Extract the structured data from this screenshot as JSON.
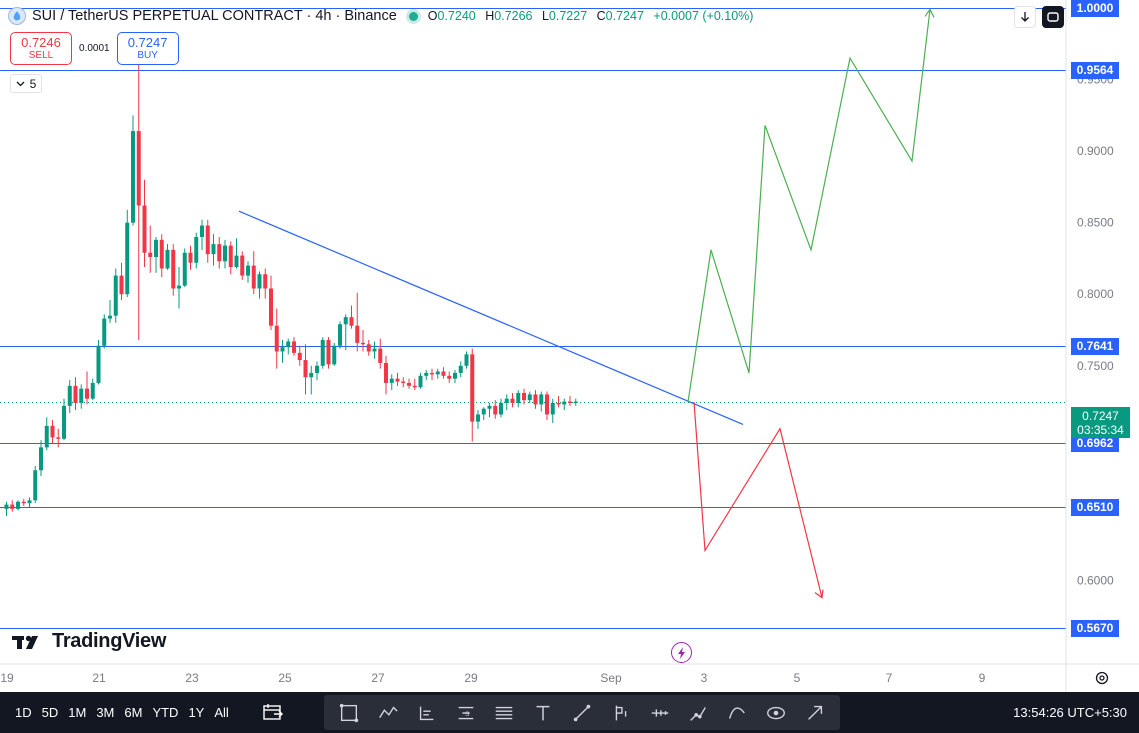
{
  "header": {
    "title": "SUI / TetherUS PERPETUAL CONTRACT · 4h · Binance",
    "ohlc": {
      "o_label": "O",
      "o": "0.7240",
      "h_label": "H",
      "h": "0.7266",
      "l_label": "L",
      "l": "0.7227",
      "c_label": "C",
      "c": "0.7247",
      "change": "+0.0007 (+0.10%)"
    }
  },
  "trade": {
    "sell_price": "0.7246",
    "sell_label": "SELL",
    "spread": "0.0001",
    "buy_price": "0.7247",
    "buy_label": "BUY"
  },
  "indicator_toggle": "5",
  "current_price": {
    "value": "0.7247",
    "countdown": "03:35:34"
  },
  "logo_text": "TradingView",
  "bottom_toolbar": {
    "periods": [
      "1D",
      "5D",
      "1M",
      "3M",
      "6M",
      "YTD",
      "1Y",
      "All"
    ],
    "tools": [
      "crosshair-icon",
      "pattern-icon",
      "long-position-icon",
      "short-position-icon",
      "fib-icon",
      "text-icon",
      "trendline-icon",
      "brush-icon",
      "ruler-icon",
      "path-icon",
      "curve-icon",
      "eye-icon",
      "arrow-icon"
    ],
    "clock": "13:54:26 UTC+5:30"
  },
  "colors": {
    "up": "#089981",
    "down": "#f23645",
    "level_line": "#2962ff",
    "trendline": "#2962ff",
    "bull_path": "#4caf50",
    "bear_path": "#f23645",
    "toolbar_bg": "#131722"
  },
  "chart_data": {
    "type": "candlestick",
    "timeframe": "4h",
    "y_axis": {
      "min": 0.55,
      "max": 1.0,
      "tick_labels": [
        "0.6000",
        "0.7500",
        "0.8000",
        "0.8500",
        "0.9000",
        "0.9500"
      ]
    },
    "x_axis": {
      "tick_labels": [
        "19",
        "21",
        "23",
        "25",
        "27",
        "29",
        "Sep",
        "3",
        "5",
        "7",
        "9"
      ]
    },
    "horizontal_levels": [
      1.0,
      0.9564,
      0.7641,
      0.6962,
      0.651,
      0.567
    ],
    "level_labels": [
      "1.0000",
      "0.9564",
      "0.7641",
      "0.6962",
      "0.6510",
      "0.5670"
    ],
    "candles": [
      {
        "o": 0.65,
        "h": 0.655,
        "l": 0.645,
        "c": 0.653
      },
      {
        "o": 0.653,
        "h": 0.656,
        "l": 0.648,
        "c": 0.65
      },
      {
        "o": 0.65,
        "h": 0.656,
        "l": 0.649,
        "c": 0.655
      },
      {
        "o": 0.655,
        "h": 0.657,
        "l": 0.652,
        "c": 0.654
      },
      {
        "o": 0.654,
        "h": 0.658,
        "l": 0.651,
        "c": 0.656
      },
      {
        "o": 0.656,
        "h": 0.68,
        "l": 0.654,
        "c": 0.677
      },
      {
        "o": 0.677,
        "h": 0.698,
        "l": 0.673,
        "c": 0.693
      },
      {
        "o": 0.693,
        "h": 0.714,
        "l": 0.691,
        "c": 0.708
      },
      {
        "o": 0.708,
        "h": 0.712,
        "l": 0.696,
        "c": 0.7
      },
      {
        "o": 0.7,
        "h": 0.706,
        "l": 0.693,
        "c": 0.699
      },
      {
        "o": 0.699,
        "h": 0.727,
        "l": 0.698,
        "c": 0.722
      },
      {
        "o": 0.722,
        "h": 0.74,
        "l": 0.717,
        "c": 0.736
      },
      {
        "o": 0.736,
        "h": 0.742,
        "l": 0.719,
        "c": 0.724
      },
      {
        "o": 0.724,
        "h": 0.737,
        "l": 0.72,
        "c": 0.734
      },
      {
        "o": 0.734,
        "h": 0.746,
        "l": 0.723,
        "c": 0.727
      },
      {
        "o": 0.727,
        "h": 0.741,
        "l": 0.726,
        "c": 0.738
      },
      {
        "o": 0.738,
        "h": 0.768,
        "l": 0.737,
        "c": 0.764
      },
      {
        "o": 0.764,
        "h": 0.786,
        "l": 0.762,
        "c": 0.783
      },
      {
        "o": 0.783,
        "h": 0.796,
        "l": 0.78,
        "c": 0.785
      },
      {
        "o": 0.785,
        "h": 0.818,
        "l": 0.78,
        "c": 0.813
      },
      {
        "o": 0.813,
        "h": 0.822,
        "l": 0.796,
        "c": 0.8
      },
      {
        "o": 0.8,
        "h": 0.859,
        "l": 0.798,
        "c": 0.85
      },
      {
        "o": 0.85,
        "h": 0.925,
        "l": 0.848,
        "c": 0.914
      },
      {
        "o": 0.914,
        "h": 0.967,
        "l": 0.768,
        "c": 0.862
      },
      {
        "o": 0.862,
        "h": 0.88,
        "l": 0.819,
        "c": 0.829
      },
      {
        "o": 0.829,
        "h": 0.848,
        "l": 0.815,
        "c": 0.826
      },
      {
        "o": 0.826,
        "h": 0.84,
        "l": 0.815,
        "c": 0.838
      },
      {
        "o": 0.838,
        "h": 0.842,
        "l": 0.812,
        "c": 0.818
      },
      {
        "o": 0.818,
        "h": 0.835,
        "l": 0.817,
        "c": 0.831
      },
      {
        "o": 0.831,
        "h": 0.835,
        "l": 0.799,
        "c": 0.804
      },
      {
        "o": 0.804,
        "h": 0.819,
        "l": 0.79,
        "c": 0.806
      },
      {
        "o": 0.806,
        "h": 0.832,
        "l": 0.805,
        "c": 0.829
      },
      {
        "o": 0.829,
        "h": 0.834,
        "l": 0.817,
        "c": 0.822
      },
      {
        "o": 0.822,
        "h": 0.843,
        "l": 0.818,
        "c": 0.84
      },
      {
        "o": 0.84,
        "h": 0.852,
        "l": 0.831,
        "c": 0.848
      },
      {
        "o": 0.848,
        "h": 0.852,
        "l": 0.822,
        "c": 0.828
      },
      {
        "o": 0.828,
        "h": 0.842,
        "l": 0.82,
        "c": 0.835
      },
      {
        "o": 0.835,
        "h": 0.84,
        "l": 0.818,
        "c": 0.823
      },
      {
        "o": 0.823,
        "h": 0.838,
        "l": 0.818,
        "c": 0.834
      },
      {
        "o": 0.834,
        "h": 0.837,
        "l": 0.814,
        "c": 0.819
      },
      {
        "o": 0.819,
        "h": 0.839,
        "l": 0.818,
        "c": 0.827
      },
      {
        "o": 0.827,
        "h": 0.83,
        "l": 0.81,
        "c": 0.813
      },
      {
        "o": 0.813,
        "h": 0.823,
        "l": 0.808,
        "c": 0.82
      },
      {
        "o": 0.82,
        "h": 0.83,
        "l": 0.8,
        "c": 0.804
      },
      {
        "o": 0.804,
        "h": 0.816,
        "l": 0.797,
        "c": 0.814
      },
      {
        "o": 0.814,
        "h": 0.818,
        "l": 0.797,
        "c": 0.804
      },
      {
        "o": 0.804,
        "h": 0.813,
        "l": 0.775,
        "c": 0.778
      },
      {
        "o": 0.778,
        "h": 0.79,
        "l": 0.748,
        "c": 0.76
      },
      {
        "o": 0.76,
        "h": 0.768,
        "l": 0.752,
        "c": 0.763
      },
      {
        "o": 0.763,
        "h": 0.769,
        "l": 0.758,
        "c": 0.767
      },
      {
        "o": 0.767,
        "h": 0.77,
        "l": 0.757,
        "c": 0.759
      },
      {
        "o": 0.759,
        "h": 0.764,
        "l": 0.75,
        "c": 0.754
      },
      {
        "o": 0.754,
        "h": 0.765,
        "l": 0.73,
        "c": 0.742
      },
      {
        "o": 0.742,
        "h": 0.75,
        "l": 0.73,
        "c": 0.745
      },
      {
        "o": 0.745,
        "h": 0.753,
        "l": 0.74,
        "c": 0.75
      },
      {
        "o": 0.75,
        "h": 0.77,
        "l": 0.748,
        "c": 0.768
      },
      {
        "o": 0.768,
        "h": 0.77,
        "l": 0.748,
        "c": 0.751
      },
      {
        "o": 0.751,
        "h": 0.766,
        "l": 0.75,
        "c": 0.764
      },
      {
        "o": 0.764,
        "h": 0.781,
        "l": 0.762,
        "c": 0.779
      },
      {
        "o": 0.779,
        "h": 0.786,
        "l": 0.761,
        "c": 0.784
      },
      {
        "o": 0.784,
        "h": 0.792,
        "l": 0.776,
        "c": 0.778
      },
      {
        "o": 0.778,
        "h": 0.801,
        "l": 0.76,
        "c": 0.766
      },
      {
        "o": 0.766,
        "h": 0.775,
        "l": 0.76,
        "c": 0.765
      },
      {
        "o": 0.765,
        "h": 0.768,
        "l": 0.757,
        "c": 0.76
      },
      {
        "o": 0.76,
        "h": 0.767,
        "l": 0.755,
        "c": 0.762
      },
      {
        "o": 0.762,
        "h": 0.769,
        "l": 0.748,
        "c": 0.752
      },
      {
        "o": 0.752,
        "h": 0.757,
        "l": 0.73,
        "c": 0.738
      },
      {
        "o": 0.738,
        "h": 0.744,
        "l": 0.733,
        "c": 0.741
      },
      {
        "o": 0.741,
        "h": 0.745,
        "l": 0.736,
        "c": 0.739
      },
      {
        "o": 0.739,
        "h": 0.742,
        "l": 0.735,
        "c": 0.738
      },
      {
        "o": 0.738,
        "h": 0.741,
        "l": 0.734,
        "c": 0.736
      },
      {
        "o": 0.736,
        "h": 0.741,
        "l": 0.733,
        "c": 0.735
      },
      {
        "o": 0.735,
        "h": 0.745,
        "l": 0.734,
        "c": 0.743
      },
      {
        "o": 0.743,
        "h": 0.747,
        "l": 0.74,
        "c": 0.745
      },
      {
        "o": 0.745,
        "h": 0.748,
        "l": 0.74,
        "c": 0.744
      },
      {
        "o": 0.744,
        "h": 0.748,
        "l": 0.741,
        "c": 0.746
      },
      {
        "o": 0.746,
        "h": 0.749,
        "l": 0.741,
        "c": 0.743
      },
      {
        "o": 0.743,
        "h": 0.746,
        "l": 0.738,
        "c": 0.741
      },
      {
        "o": 0.741,
        "h": 0.747,
        "l": 0.738,
        "c": 0.745
      },
      {
        "o": 0.745,
        "h": 0.753,
        "l": 0.742,
        "c": 0.75
      },
      {
        "o": 0.75,
        "h": 0.76,
        "l": 0.748,
        "c": 0.758
      },
      {
        "o": 0.758,
        "h": 0.762,
        "l": 0.697,
        "c": 0.711
      },
      {
        "o": 0.711,
        "h": 0.719,
        "l": 0.706,
        "c": 0.716
      },
      {
        "o": 0.716,
        "h": 0.721,
        "l": 0.712,
        "c": 0.72
      },
      {
        "o": 0.72,
        "h": 0.724,
        "l": 0.714,
        "c": 0.722
      },
      {
        "o": 0.722,
        "h": 0.726,
        "l": 0.713,
        "c": 0.716
      },
      {
        "o": 0.716,
        "h": 0.727,
        "l": 0.714,
        "c": 0.724
      },
      {
        "o": 0.724,
        "h": 0.73,
        "l": 0.719,
        "c": 0.727
      },
      {
        "o": 0.727,
        "h": 0.731,
        "l": 0.721,
        "c": 0.724
      },
      {
        "o": 0.724,
        "h": 0.733,
        "l": 0.721,
        "c": 0.731
      },
      {
        "o": 0.731,
        "h": 0.734,
        "l": 0.723,
        "c": 0.726
      },
      {
        "o": 0.726,
        "h": 0.732,
        "l": 0.724,
        "c": 0.73
      },
      {
        "o": 0.73,
        "h": 0.733,
        "l": 0.72,
        "c": 0.723
      },
      {
        "o": 0.723,
        "h": 0.732,
        "l": 0.718,
        "c": 0.73
      },
      {
        "o": 0.73,
        "h": 0.732,
        "l": 0.712,
        "c": 0.716
      },
      {
        "o": 0.716,
        "h": 0.727,
        "l": 0.71,
        "c": 0.724
      },
      {
        "o": 0.724,
        "h": 0.729,
        "l": 0.721,
        "c": 0.723
      },
      {
        "o": 0.723,
        "h": 0.727,
        "l": 0.719,
        "c": 0.725
      },
      {
        "o": 0.725,
        "h": 0.729,
        "l": 0.722,
        "c": 0.724
      },
      {
        "o": 0.724,
        "h": 0.727,
        "l": 0.722,
        "c": 0.725
      }
    ],
    "trendline": [
      [
        0,
        0.858
      ],
      [
        1,
        0.709
      ]
    ],
    "bull_projection": [
      0.7247,
      0.831,
      0.745,
      0.918,
      0.831,
      0.965,
      0.893,
      0.999
    ],
    "bear_projection": [
      0.7247,
      0.621,
      0.706,
      0.588
    ]
  }
}
